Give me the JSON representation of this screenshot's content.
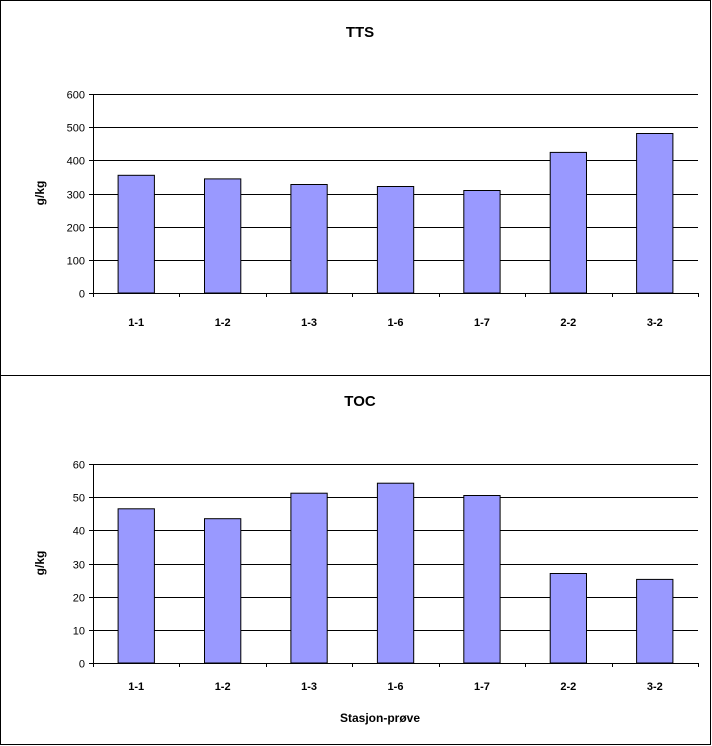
{
  "chart_data": [
    {
      "type": "bar",
      "title": "TTS",
      "xlabel": "",
      "ylabel": "g/kg",
      "categories": [
        "1-1",
        "1-2",
        "1-3",
        "1-6",
        "1-7",
        "2-2",
        "3-2"
      ],
      "values": [
        355,
        344,
        327,
        321,
        309,
        424,
        481
      ],
      "ylim": [
        0,
        600
      ],
      "yticks": [
        0,
        100,
        200,
        300,
        400,
        500,
        600
      ],
      "grid": true,
      "bar_color": "#9999ff"
    },
    {
      "type": "bar",
      "title": "TOC",
      "xlabel": "Stasjon-prøve",
      "ylabel": "g/kg",
      "categories": [
        "1-1",
        "1-2",
        "1-3",
        "1-6",
        "1-7",
        "2-2",
        "3-2"
      ],
      "values": [
        46.5,
        43.5,
        51.2,
        54.2,
        50.5,
        27,
        25.2
      ],
      "ylim": [
        0,
        60
      ],
      "yticks": [
        0,
        10,
        20,
        30,
        40,
        50,
        60
      ],
      "grid": true,
      "bar_color": "#9999ff"
    }
  ]
}
